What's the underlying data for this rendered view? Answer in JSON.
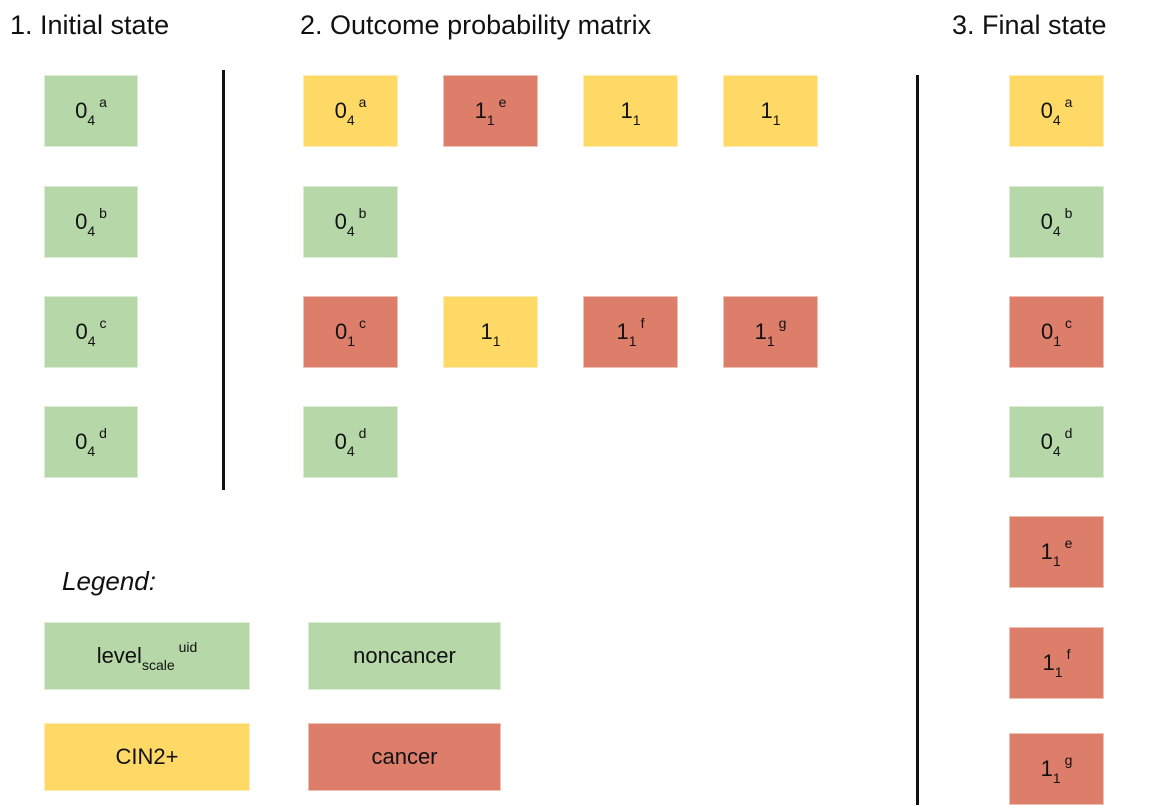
{
  "titles": {
    "initial": "1. Initial state",
    "matrix": "2. Outcome probability matrix",
    "final": "3. Final state"
  },
  "initial": [
    {
      "level": "0",
      "scale": "4",
      "uid": "a",
      "color": "#b6d7a8"
    },
    {
      "level": "0",
      "scale": "4",
      "uid": "b",
      "color": "#b6d7a8"
    },
    {
      "level": "0",
      "scale": "4",
      "uid": "c",
      "color": "#b6d7a8"
    },
    {
      "level": "0",
      "scale": "4",
      "uid": "d",
      "color": "#b6d7a8"
    }
  ],
  "matrix": [
    [
      {
        "level": "0",
        "scale": "4",
        "uid": "a",
        "color": "#ffd966"
      },
      {
        "level": "1",
        "scale": "1",
        "uid": "e",
        "color": "#dd7e6b"
      },
      {
        "level": "1",
        "scale": "1",
        "color": "#ffd966"
      },
      {
        "level": "1",
        "scale": "1",
        "color": "#ffd966"
      }
    ],
    [
      {
        "level": "0",
        "scale": "4",
        "uid": "b",
        "color": "#b6d7a8"
      }
    ],
    [
      {
        "level": "0",
        "scale": "1",
        "uid": "c",
        "color": "#dd7e6b"
      },
      {
        "level": "1",
        "scale": "1",
        "color": "#ffd966"
      },
      {
        "level": "1",
        "scale": "1",
        "uid": "f",
        "color": "#dd7e6b"
      },
      {
        "level": "1",
        "scale": "1",
        "uid": "g",
        "color": "#dd7e6b"
      }
    ],
    [
      {
        "level": "0",
        "scale": "4",
        "uid": "d",
        "color": "#b6d7a8"
      }
    ]
  ],
  "final": [
    {
      "level": "0",
      "scale": "4",
      "uid": "a",
      "color": "#ffd966"
    },
    {
      "level": "0",
      "scale": "4",
      "uid": "b",
      "color": "#b6d7a8"
    },
    {
      "level": "0",
      "scale": "1",
      "uid": "c",
      "color": "#dd7e6b"
    },
    {
      "level": "0",
      "scale": "4",
      "uid": "d",
      "color": "#b6d7a8"
    },
    {
      "level": "1",
      "scale": "1",
      "uid": "e",
      "color": "#dd7e6b"
    },
    {
      "level": "1",
      "scale": "1",
      "uid": "f",
      "color": "#dd7e6b"
    },
    {
      "level": "1",
      "scale": "1",
      "uid": "g",
      "color": "#dd7e6b"
    }
  ],
  "legend": {
    "title": "Legend:",
    "items": [
      {
        "level": "level",
        "scale": "scale",
        "uid": "uid",
        "color": "#b6d7a8"
      },
      {
        "label": "noncancer",
        "color": "#b6d7a8"
      },
      {
        "label": "CIN2+",
        "color": "#ffd966"
      },
      {
        "label": "cancer",
        "color": "#dd7e6b"
      }
    ]
  }
}
